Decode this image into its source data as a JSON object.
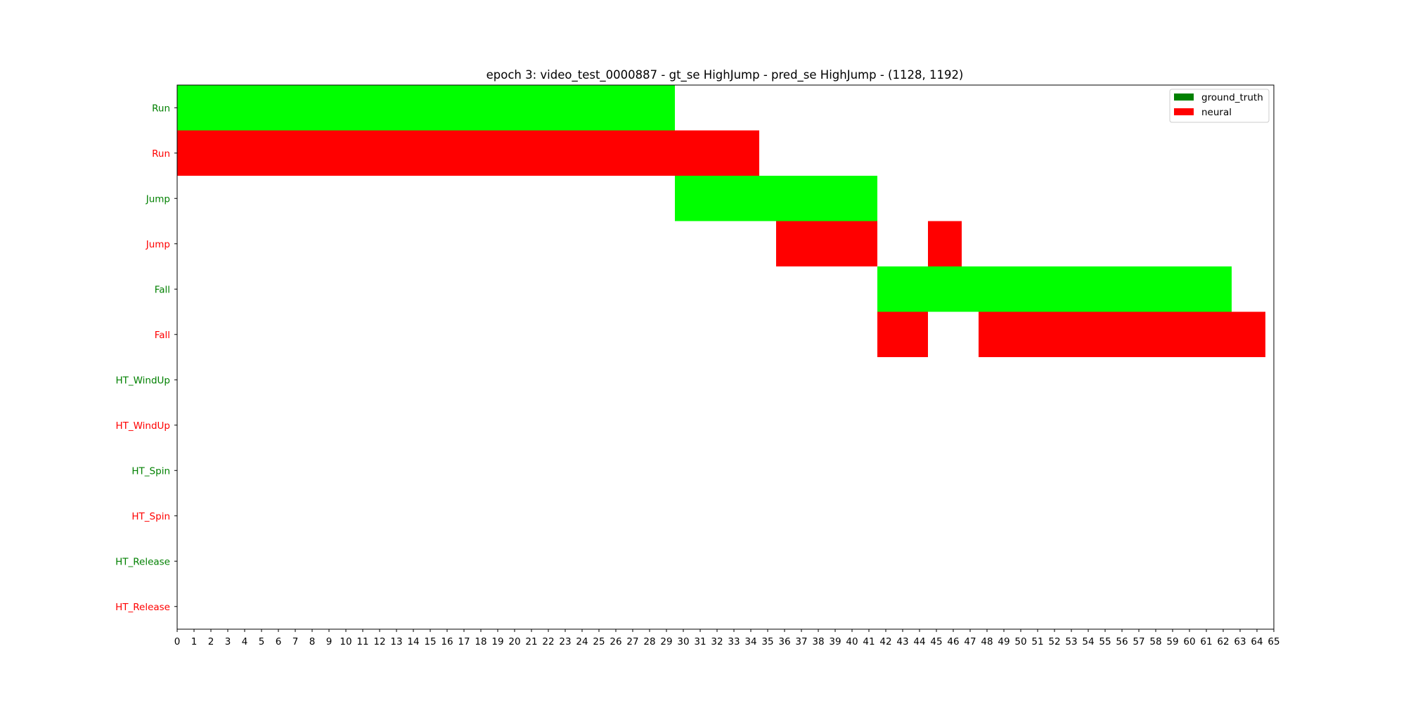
{
  "chart_data": {
    "type": "bar",
    "subtype": "horizontal-timeline",
    "title": "epoch 3: video_test_0000887 - gt_se HighJump - pred_se HighJump - (1128, 1192)",
    "xlim": [
      0,
      65
    ],
    "x_ticks": [
      0,
      1,
      2,
      3,
      4,
      5,
      6,
      7,
      8,
      9,
      10,
      11,
      12,
      13,
      14,
      15,
      16,
      17,
      18,
      19,
      20,
      21,
      22,
      23,
      24,
      25,
      26,
      27,
      28,
      29,
      30,
      31,
      32,
      33,
      34,
      35,
      36,
      37,
      38,
      39,
      40,
      41,
      42,
      43,
      44,
      45,
      46,
      47,
      48,
      49,
      50,
      51,
      52,
      53,
      54,
      55,
      56,
      57,
      58,
      59,
      60,
      61,
      62,
      63,
      64,
      65
    ],
    "rows": [
      {
        "label": "Run",
        "series": "ground_truth"
      },
      {
        "label": "Run",
        "series": "neural"
      },
      {
        "label": "Jump",
        "series": "ground_truth"
      },
      {
        "label": "Jump",
        "series": "neural"
      },
      {
        "label": "Fall",
        "series": "ground_truth"
      },
      {
        "label": "Fall",
        "series": "neural"
      },
      {
        "label": "HT_WindUp",
        "series": "ground_truth"
      },
      {
        "label": "HT_WindUp",
        "series": "neural"
      },
      {
        "label": "HT_Spin",
        "series": "ground_truth"
      },
      {
        "label": "HT_Spin",
        "series": "neural"
      },
      {
        "label": "HT_Release",
        "series": "ground_truth"
      },
      {
        "label": "HT_Release",
        "series": "neural"
      }
    ],
    "segments": [
      {
        "row": 0,
        "start": 0,
        "end": 29.5,
        "series": "ground_truth"
      },
      {
        "row": 1,
        "start": 0,
        "end": 34.5,
        "series": "neural"
      },
      {
        "row": 2,
        "start": 29.5,
        "end": 41.5,
        "series": "ground_truth"
      },
      {
        "row": 3,
        "start": 35.5,
        "end": 41.5,
        "series": "neural"
      },
      {
        "row": 3,
        "start": 44.5,
        "end": 46.5,
        "series": "neural"
      },
      {
        "row": 4,
        "start": 41.5,
        "end": 62.5,
        "series": "ground_truth"
      },
      {
        "row": 5,
        "start": 41.5,
        "end": 44.5,
        "series": "neural"
      },
      {
        "row": 5,
        "start": 47.5,
        "end": 64.5,
        "series": "neural"
      }
    ],
    "series": [
      {
        "name": "ground_truth",
        "bar_color": "#00ff00",
        "legend_color": "#008000",
        "label_color": "#008000"
      },
      {
        "name": "neural",
        "bar_color": "#ff0000",
        "legend_color": "#ff0000",
        "label_color": "#ff0000"
      }
    ],
    "legend_position": "top-right",
    "grid": false
  }
}
